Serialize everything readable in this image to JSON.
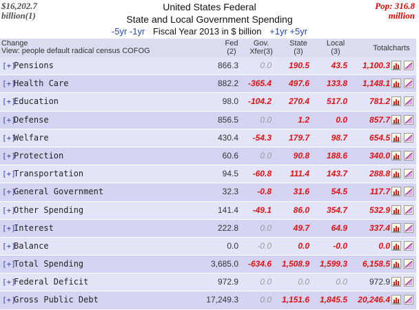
{
  "header": {
    "gdp_amount": "$16,202.7",
    "gdp_unit": "billion(1)",
    "population": "Pop: 316.8",
    "population_unit": "million",
    "title_line1": "United States Federal",
    "title_line2": "State and Local Government Spending",
    "nav_minus5": "-5yr",
    "nav_minus1": "-1yr",
    "fiscal_year_label": "Fiscal Year 2013 in $ billion",
    "nav_plus1": "+1yr",
    "nav_plus5": "+5yr"
  },
  "table_header": {
    "change": "Change",
    "view_prefix": "View:",
    "views": [
      "people",
      "default",
      "radical",
      "census",
      "COFOG"
    ],
    "col_fed": "Fed",
    "col_fed_note": "(2)",
    "col_xfer": "Gov.",
    "col_xfer_note": "Xfer(3)",
    "col_state": "State",
    "col_state_note": "(3)",
    "col_local": "Local",
    "col_local_note": "(3)",
    "col_total": "Total",
    "col_charts": "charts"
  },
  "rows": [
    {
      "expand": "[+]",
      "label": "Pensions",
      "fed": "866.3",
      "xfer": "0.0",
      "state": "190.5",
      "local": "43.5",
      "total": "1,100.3"
    },
    {
      "expand": "[+]",
      "label": "Health Care",
      "fed": "882.2",
      "xfer": "-365.4",
      "state": "497.6",
      "local": "133.8",
      "total": "1,148.1"
    },
    {
      "expand": "[+]",
      "label": "Education",
      "fed": "98.0",
      "xfer": "-104.2",
      "state": "270.4",
      "local": "517.0",
      "total": "781.2"
    },
    {
      "expand": "[+]",
      "label": "Defense",
      "fed": "856.5",
      "xfer": "0.0",
      "state": "1.2",
      "local": "0.0",
      "total": "857.7"
    },
    {
      "expand": "[+]",
      "label": "Welfare",
      "fed": "430.4",
      "xfer": "-54.3",
      "state": "179.7",
      "local": "98.7",
      "total": "654.5"
    },
    {
      "expand": "[+]",
      "label": "Protection",
      "fed": "60.6",
      "xfer": "0.0",
      "state": "90.8",
      "local": "188.6",
      "total": "340.0"
    },
    {
      "expand": "[+]",
      "label": "Transportation",
      "fed": "94.5",
      "xfer": "-60.8",
      "state": "111.4",
      "local": "143.7",
      "total": "288.8"
    },
    {
      "expand": "[+]",
      "label": "General Government",
      "fed": "32.3",
      "xfer": "-0.8",
      "state": "31.6",
      "local": "54.5",
      "total": "117.7"
    },
    {
      "expand": "[+]",
      "label": "Other Spending",
      "fed": "141.4",
      "xfer": "-49.1",
      "state": "86.0",
      "local": "354.7",
      "total": "532.9"
    },
    {
      "expand": "[+]",
      "label": "Interest",
      "fed": "222.8",
      "xfer": "0.0",
      "state": "49.7",
      "local": "64.9",
      "total": "337.4"
    },
    {
      "expand": "[+]",
      "label": "Balance",
      "fed": "0.0",
      "xfer": "-0.0",
      "state": "0.0",
      "local": "-0.0",
      "total": "0.0"
    },
    {
      "expand": "[+]",
      "label": "Total Spending",
      "fed": "3,685.0",
      "xfer": "-634.6",
      "state": "1,508.9",
      "local": "1,599.3",
      "total": "6,158.5"
    },
    {
      "expand": "[+]",
      "label": "Federal Deficit",
      "fed": "972.9",
      "xfer": "0.0",
      "state": "0.0",
      "local": "0.0",
      "total": "972.9"
    },
    {
      "expand": "[+]",
      "label": "Gross Public Debt",
      "fed": "17,249.3",
      "xfer": "0.0",
      "state": "1,151.6",
      "local": "1,845.5",
      "total": "20,246.4"
    }
  ],
  "icons": {
    "bar": "bar-chart-icon",
    "line": "line-chart-icon"
  },
  "colors": {
    "accent_red": "#e01010",
    "link_blue": "#2244bb",
    "row_even": "#e4e4f8",
    "row_odd": "#d4d4f2"
  }
}
